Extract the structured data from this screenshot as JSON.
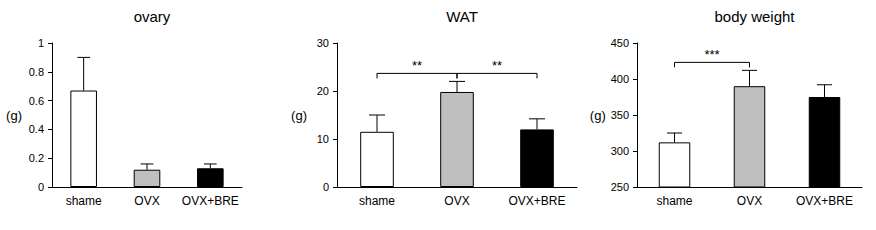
{
  "chart_data": [
    {
      "type": "bar",
      "title": "ovary",
      "y_label": "(g)",
      "categories": [
        "shame",
        "OVX",
        "OVX+BRE"
      ],
      "values": [
        0.67,
        0.12,
        0.13
      ],
      "errors": [
        0.23,
        0.04,
        0.03
      ],
      "colors": [
        "#ffffff",
        "#bfbfbf",
        "#000000"
      ],
      "ylim": [
        0,
        1
      ],
      "yticks": [
        0,
        0.2,
        0.4,
        0.6,
        0.8,
        1
      ],
      "grid": false,
      "annotations": []
    },
    {
      "type": "bar",
      "title": "WAT",
      "y_label": "(g)",
      "categories": [
        "shame",
        "OVX",
        "OVX+BRE"
      ],
      "values": [
        11.5,
        19.8,
        12
      ],
      "errors": [
        3.5,
        2.2,
        2.2
      ],
      "colors": [
        "#ffffff",
        "#bfbfbf",
        "#000000"
      ],
      "ylim": [
        0,
        30
      ],
      "yticks": [
        0,
        10,
        20,
        30
      ],
      "grid": false,
      "annotations": [
        {
          "from": "shame",
          "to": "OVX",
          "label": "**"
        },
        {
          "from": "OVX",
          "to": "OVX+BRE",
          "label": "**"
        }
      ]
    },
    {
      "type": "bar",
      "title": "body weight",
      "y_label": "(g)",
      "categories": [
        "shame",
        "OVX",
        "OVX+BRE"
      ],
      "values": [
        312,
        390,
        375
      ],
      "errors": [
        13,
        22,
        17
      ],
      "colors": [
        "#ffffff",
        "#bfbfbf",
        "#000000"
      ],
      "ylim": [
        250,
        450
      ],
      "yticks": [
        250,
        300,
        350,
        400,
        450
      ],
      "grid": false,
      "annotations": [
        {
          "from": "shame",
          "to": "OVX",
          "label": "***"
        }
      ]
    }
  ]
}
